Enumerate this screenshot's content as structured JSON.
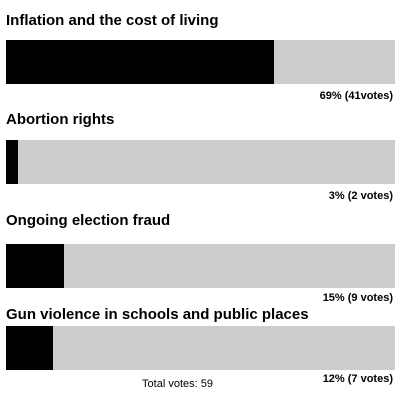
{
  "poll": {
    "options": [
      {
        "label": "Inflation and the cost of living",
        "percent": 69,
        "result_text": "69% (41votes)"
      },
      {
        "label": "Abortion rights",
        "percent": 3,
        "result_text": "3% (2 votes)"
      },
      {
        "label": "Ongoing election fraud",
        "percent": 15,
        "result_text": "15% (9 votes)"
      },
      {
        "label": "Gun violence in schools and public places",
        "percent": 12,
        "result_text": "12% (7 votes)"
      }
    ],
    "total_votes_text": "Total votes: 59",
    "colors": {
      "bar_fill": "#000000",
      "bar_track": "#cccccc",
      "text": "#000000"
    }
  }
}
